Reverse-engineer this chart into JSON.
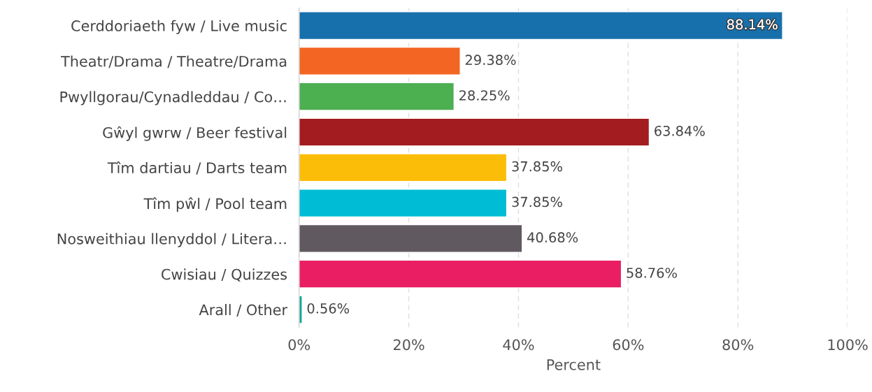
{
  "chart_data": {
    "type": "bar",
    "orientation": "horizontal",
    "xlabel": "Percent",
    "categories": [
      "Cerddoriaeth fyw / Live music",
      "Theatr/Drama / Theatre/Drama",
      "Pwyllgorau/Cynadleddau / Co…",
      "Gŵyl gwrw / Beer festival",
      "Tîm dartiau / Darts team",
      "Tîm pŵl / Pool team",
      "Nosweithiau llenyddol / Litera…",
      "Cwisiau / Quizzes",
      "Arall / Other"
    ],
    "values": [
      88.14,
      29.38,
      28.25,
      63.84,
      37.85,
      37.85,
      40.68,
      58.76,
      0.56
    ],
    "value_labels": [
      "88.14%",
      "29.38%",
      "28.25%",
      "63.84%",
      "37.85%",
      "37.85%",
      "40.68%",
      "58.76%",
      "0.56%"
    ],
    "colors": [
      "#1770ab",
      "#f26522",
      "#4caf50",
      "#a31c1f",
      "#fbbd08",
      "#00bcd4",
      "#605a60",
      "#e91e63",
      "#14a39a"
    ],
    "xlim": [
      0,
      100
    ],
    "xticks": [
      {
        "value": 0,
        "label": "0%"
      },
      {
        "value": 20,
        "label": "20%"
      },
      {
        "value": 40,
        "label": "40%"
      },
      {
        "value": 60,
        "label": "60%"
      },
      {
        "value": 80,
        "label": "80%"
      },
      {
        "value": 100,
        "label": "100%"
      }
    ],
    "grid": "x"
  }
}
